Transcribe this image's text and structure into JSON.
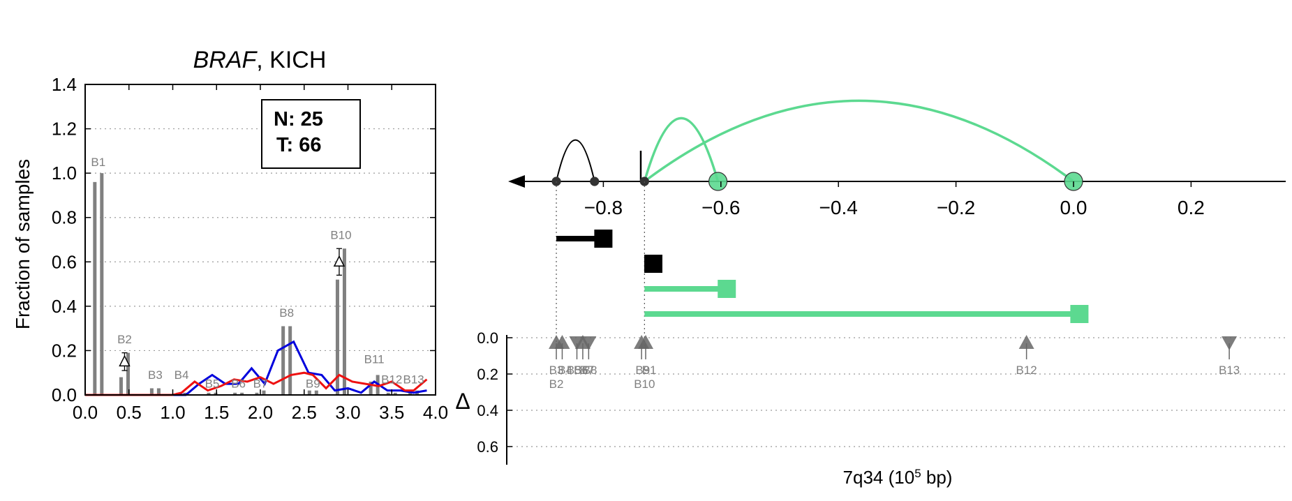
{
  "colors": {
    "bar": "#808080",
    "blue": "#0000dd",
    "red": "#ee1111",
    "green": "#5cd990",
    "black": "#000000",
    "gray_label": "#808080",
    "marker": "#666666"
  },
  "chart_data": [
    {
      "type": "bar",
      "title_italic": "BRAF",
      "title_rest": ", KICH",
      "ylabel": "Fraction of samples",
      "xlim": [
        0,
        4
      ],
      "ylim": [
        0,
        1.4
      ],
      "xticks": [
        "0.0",
        "0.5",
        "1.0",
        "1.5",
        "2.0",
        "2.5",
        "3.0",
        "3.5",
        "4.0"
      ],
      "yticks": [
        "0.0",
        "0.2",
        "0.4",
        "0.6",
        "0.8",
        "1.0",
        "1.2",
        "1.4"
      ],
      "grid": "horizontal dotted",
      "legend_box": {
        "n_label": "N: 25",
        "t_label": "T: 66"
      },
      "bars": [
        {
          "name": "B1",
          "x": 0.15,
          "normal": 0.96,
          "tumor": 1.0,
          "label_y": 1.02
        },
        {
          "name": "B2",
          "x": 0.45,
          "normal": 0.08,
          "tumor": 0.19,
          "label_y": 0.22
        },
        {
          "name": "B3",
          "x": 0.8,
          "normal": 0.03,
          "tumor": 0.03,
          "label_y": 0.06
        },
        {
          "name": "B4",
          "x": 1.1,
          "normal": 0.01,
          "tumor": 0.01,
          "label_y": 0.06
        },
        {
          "name": "B5",
          "x": 1.45,
          "normal": 0.01,
          "tumor": 0.01,
          "label_y": 0.02
        },
        {
          "name": "B6",
          "x": 1.75,
          "normal": 0.01,
          "tumor": 0.01,
          "label_y": 0.02
        },
        {
          "name": "B7",
          "x": 2.0,
          "normal": 0.01,
          "tumor": 0.02,
          "label_y": 0.02
        },
        {
          "name": "B8",
          "x": 2.3,
          "normal": 0.31,
          "tumor": 0.31,
          "label_y": 0.34
        },
        {
          "name": "B9",
          "x": 2.6,
          "normal": 0.02,
          "tumor": 0.02,
          "label_y": 0.02
        },
        {
          "name": "B10",
          "x": 2.92,
          "normal": 0.52,
          "tumor": 0.66,
          "label_y": 0.69
        },
        {
          "name": "B11",
          "x": 3.3,
          "normal": 0.06,
          "tumor": 0.09,
          "label_y": 0.13
        },
        {
          "name": "B12",
          "x": 3.5,
          "normal": 0.01,
          "tumor": 0.01,
          "label_y": 0.04
        },
        {
          "name": "B13",
          "x": 3.75,
          "normal": 0.02,
          "tumor": 0.02,
          "label_y": 0.04
        }
      ],
      "triangles": [
        {
          "x": 0.45,
          "y": 0.15,
          "err": 0.04
        },
        {
          "x": 2.9,
          "y": 0.6,
          "err": 0.06
        }
      ],
      "series": [
        {
          "color_key": "blue",
          "x": [
            0,
            0.2,
            0.4,
            0.6,
            0.8,
            1.0,
            1.15,
            1.3,
            1.45,
            1.6,
            1.75,
            1.9,
            2.05,
            2.2,
            2.38,
            2.55,
            2.7,
            2.85,
            3.0,
            3.15,
            3.3,
            3.45,
            3.6,
            3.75,
            3.9
          ],
          "values": [
            0,
            0,
            0,
            0,
            0,
            0,
            0,
            0.05,
            0.09,
            0.05,
            0.05,
            0.12,
            0.05,
            0.2,
            0.24,
            0.1,
            0.09,
            0.02,
            0.03,
            0.01,
            0.06,
            0.02,
            0.02,
            0.01,
            0.02
          ]
        },
        {
          "color_key": "red",
          "x": [
            0,
            0.2,
            0.4,
            0.6,
            0.8,
            1.0,
            1.1,
            1.25,
            1.4,
            1.55,
            1.7,
            1.85,
            2.0,
            2.15,
            2.35,
            2.5,
            2.6,
            2.75,
            2.9,
            3.05,
            3.2,
            3.35,
            3.5,
            3.65,
            3.75,
            3.9
          ],
          "values": [
            0,
            0,
            0,
            0,
            0,
            0,
            0.01,
            0.06,
            0.02,
            0.04,
            0.07,
            0.06,
            0.08,
            0.05,
            0.09,
            0.1,
            0.09,
            0.03,
            0.09,
            0.06,
            0.05,
            0.04,
            0.06,
            0.02,
            0.02,
            0.07
          ]
        }
      ]
    },
    {
      "type": "diagram",
      "xlabel_main": "7q34 (10",
      "xlabel_sup": "5",
      "xlabel_tail": " bp)",
      "xlim": [
        -1.05,
        0.33
      ],
      "xticks": [
        {
          "v": -0.8,
          "label": "−0.8"
        },
        {
          "v": -0.6,
          "label": "−0.6"
        },
        {
          "v": -0.4,
          "label": "−0.4"
        },
        {
          "v": -0.2,
          "label": "−0.2"
        },
        {
          "v": 0.0,
          "label": "0.0"
        },
        {
          "v": 0.2,
          "label": "0.2"
        }
      ],
      "delta_label": "Δ",
      "delta_ylim": [
        0,
        0.7
      ],
      "delta_yticks": [
        "0.0",
        "0.2",
        "0.4",
        "0.6"
      ],
      "points": [
        {
          "x": -0.88,
          "color_key": "black"
        },
        {
          "x": -0.815,
          "color_key": "black"
        },
        {
          "x": -0.73,
          "color_key": "black"
        },
        {
          "x": -0.605,
          "color_key": "green"
        },
        {
          "x": 0.0,
          "color_key": "green"
        }
      ],
      "arcs": [
        {
          "x1": -0.88,
          "x2": -0.815,
          "height": 0.95,
          "color_key": "black"
        },
        {
          "x1": -0.73,
          "x2": -0.605,
          "height": 1.45,
          "color_key": "green"
        },
        {
          "x1": -0.73,
          "x2": 0.0,
          "height": 1.85,
          "color_key": "green"
        }
      ],
      "segments": [
        {
          "start": -0.88,
          "end": -0.8,
          "row": 0,
          "color_key": "black"
        },
        {
          "start": -0.73,
          "end": -0.715,
          "row": 1,
          "color_key": "black"
        },
        {
          "start": -0.73,
          "end": -0.59,
          "row": 2,
          "color_key": "green"
        },
        {
          "start": -0.73,
          "end": 0.01,
          "row": 3,
          "color_key": "green"
        }
      ],
      "guides": [
        -0.88,
        -0.73
      ],
      "markers": [
        {
          "x": -0.88,
          "dir": "up"
        },
        {
          "x": -0.87,
          "dir": "up"
        },
        {
          "x": -0.845,
          "dir": "down"
        },
        {
          "x": -0.835,
          "dir": "up"
        },
        {
          "x": -0.825,
          "dir": "down"
        },
        {
          "x": -0.735,
          "dir": "up"
        },
        {
          "x": -0.728,
          "dir": "up"
        },
        {
          "x": -0.08,
          "dir": "up"
        },
        {
          "x": 0.265,
          "dir": "down"
        }
      ],
      "marker_labels": [
        {
          "text": "B2",
          "x": -0.88,
          "line": 1
        },
        {
          "text": "B3",
          "x": -0.88,
          "line": 0
        },
        {
          "text": "B4",
          "x": -0.865,
          "line": 0
        },
        {
          "text": "B5",
          "x": -0.85,
          "line": 0
        },
        {
          "text": "B6",
          "x": -0.838,
          "line": 0
        },
        {
          "text": "B7",
          "x": -0.828,
          "line": 0
        },
        {
          "text": "B8",
          "x": -0.823,
          "line": 0
        },
        {
          "text": "B9",
          "x": -0.733,
          "line": 0
        },
        {
          "text": "B1",
          "x": -0.722,
          "line": 0
        },
        {
          "text": "B10",
          "x": -0.73,
          "line": 1
        },
        {
          "text": "B12",
          "x": -0.08,
          "line": 0
        },
        {
          "text": "B13",
          "x": 0.265,
          "line": 0
        }
      ]
    }
  ]
}
